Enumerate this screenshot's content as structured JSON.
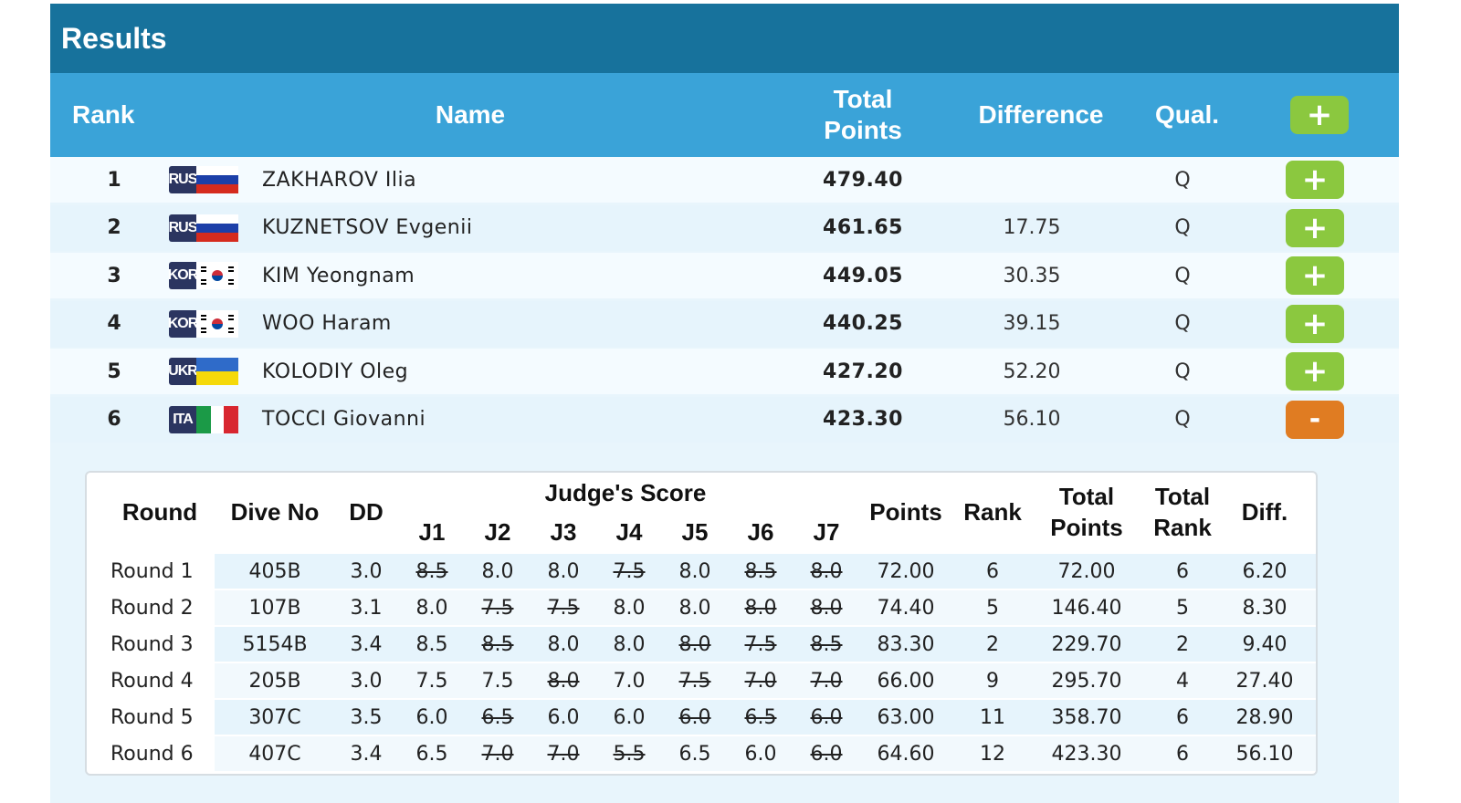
{
  "title": "Results",
  "headers": {
    "rank": "Rank",
    "name": "Name",
    "total_points": "Total Points",
    "difference": "Difference",
    "qual": "Qual.",
    "expand_all": "+"
  },
  "athletes": [
    {
      "rank": "1",
      "code": "RUS",
      "name": "ZAKHAROV Ilia",
      "total": "479.40",
      "diff": "",
      "qual": "Q",
      "toggle": "+"
    },
    {
      "rank": "2",
      "code": "RUS",
      "name": "KUZNETSOV Evgenii",
      "total": "461.65",
      "diff": "17.75",
      "qual": "Q",
      "toggle": "+"
    },
    {
      "rank": "3",
      "code": "KOR",
      "name": "KIM Yeongnam",
      "total": "449.05",
      "diff": "30.35",
      "qual": "Q",
      "toggle": "+"
    },
    {
      "rank": "4",
      "code": "KOR",
      "name": "WOO Haram",
      "total": "440.25",
      "diff": "39.15",
      "qual": "Q",
      "toggle": "+"
    },
    {
      "rank": "5",
      "code": "UKR",
      "name": "KOLODIY Oleg",
      "total": "427.20",
      "diff": "52.20",
      "qual": "Q",
      "toggle": "+"
    },
    {
      "rank": "6",
      "code": "ITA",
      "name": "TOCCI Giovanni",
      "total": "423.30",
      "diff": "56.10",
      "qual": "Q",
      "toggle": "-"
    }
  ],
  "detail": {
    "headers": {
      "round": "Round",
      "dive_no": "Dive No",
      "dd": "DD",
      "judges": "Judge's Score",
      "j": [
        "J1",
        "J2",
        "J3",
        "J4",
        "J5",
        "J6",
        "J7"
      ],
      "points": "Points",
      "rank": "Rank",
      "total_points": "Total Points",
      "total_rank": "Total Rank",
      "diff": "Diff."
    },
    "rounds": [
      {
        "round": "Round 1",
        "dive": "405B",
        "dd": "3.0",
        "scores": [
          "8.5",
          "8.0",
          "8.0",
          "7.5",
          "8.0",
          "8.5",
          "8.0"
        ],
        "struck": [
          true,
          false,
          false,
          true,
          false,
          true,
          true
        ],
        "points": "72.00",
        "rank": "6",
        "total": "72.00",
        "total_rank": "6",
        "diff": "6.20"
      },
      {
        "round": "Round 2",
        "dive": "107B",
        "dd": "3.1",
        "scores": [
          "8.0",
          "7.5",
          "7.5",
          "8.0",
          "8.0",
          "8.0",
          "8.0"
        ],
        "struck": [
          false,
          true,
          true,
          false,
          false,
          true,
          true
        ],
        "points": "74.40",
        "rank": "5",
        "total": "146.40",
        "total_rank": "5",
        "diff": "8.30"
      },
      {
        "round": "Round 3",
        "dive": "5154B",
        "dd": "3.4",
        "scores": [
          "8.5",
          "8.5",
          "8.0",
          "8.0",
          "8.0",
          "7.5",
          "8.5"
        ],
        "struck": [
          false,
          true,
          false,
          false,
          true,
          true,
          true
        ],
        "points": "83.30",
        "rank": "2",
        "total": "229.70",
        "total_rank": "2",
        "diff": "9.40"
      },
      {
        "round": "Round 4",
        "dive": "205B",
        "dd": "3.0",
        "scores": [
          "7.5",
          "7.5",
          "8.0",
          "7.0",
          "7.5",
          "7.0",
          "7.0"
        ],
        "struck": [
          false,
          false,
          true,
          false,
          true,
          true,
          true
        ],
        "points": "66.00",
        "rank": "9",
        "total": "295.70",
        "total_rank": "4",
        "diff": "27.40"
      },
      {
        "round": "Round 5",
        "dive": "307C",
        "dd": "3.5",
        "scores": [
          "6.0",
          "6.5",
          "6.0",
          "6.0",
          "6.0",
          "6.5",
          "6.0"
        ],
        "struck": [
          false,
          true,
          false,
          false,
          true,
          true,
          true
        ],
        "points": "63.00",
        "rank": "11",
        "total": "358.70",
        "total_rank": "6",
        "diff": "28.90"
      },
      {
        "round": "Round 6",
        "dive": "407C",
        "dd": "3.4",
        "scores": [
          "6.5",
          "7.0",
          "7.0",
          "5.5",
          "6.5",
          "6.0",
          "6.0"
        ],
        "struck": [
          false,
          true,
          true,
          true,
          false,
          false,
          true
        ],
        "points": "64.60",
        "rank": "12",
        "total": "423.30",
        "total_rank": "6",
        "diff": "56.10"
      }
    ]
  },
  "colors": {
    "title_bar": "#17729c",
    "header_row": "#3aa3d8",
    "expand_button": "#8bc83f",
    "collapse_button": "#e07c22"
  }
}
